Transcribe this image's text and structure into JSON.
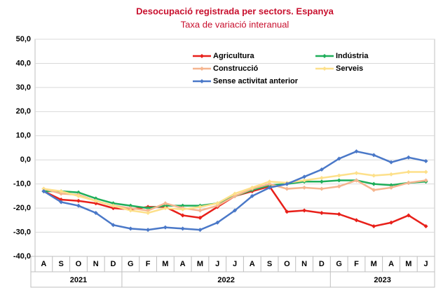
{
  "chart_data": {
    "type": "line",
    "title": "Desocupació registrada per sectors. Espanya",
    "subtitle": "Taxa de variació interanual",
    "categories": [
      "A",
      "S",
      "O",
      "N",
      "D",
      "G",
      "F",
      "M",
      "A",
      "M",
      "J",
      "J",
      "A",
      "S",
      "O",
      "N",
      "D",
      "G",
      "F",
      "M",
      "A",
      "M",
      "J"
    ],
    "years": [
      "2021",
      "2022",
      "2023"
    ],
    "ylim": [
      -40,
      50
    ],
    "yticks": [
      {
        "value": -40,
        "label": "-40,0"
      },
      {
        "value": -30,
        "label": "-30,0"
      },
      {
        "value": -20,
        "label": "-20,0"
      },
      {
        "value": -10,
        "label": "-10,0"
      },
      {
        "value": 0,
        "label": "0,0"
      },
      {
        "value": 10,
        "label": "10,0"
      },
      {
        "value": 20,
        "label": "20,0"
      },
      {
        "value": 30,
        "label": "30,0"
      },
      {
        "value": 40,
        "label": "40,0"
      },
      {
        "value": 50,
        "label": "50,0"
      }
    ],
    "grid": true,
    "series": [
      {
        "name": "Agricultura",
        "color": "#e8201a",
        "values": [
          -13,
          -16.5,
          -17,
          -18,
          -20,
          -20.5,
          -19.5,
          -19.5,
          -23,
          -24,
          -19.5,
          -15,
          -13,
          -11,
          -21.5,
          -21,
          -22,
          -22.5,
          -25,
          -27.5,
          -26,
          -23,
          -27.5
        ]
      },
      {
        "name": "Indústria",
        "color": "#1fae5a",
        "values": [
          -13,
          -13,
          -13.5,
          -16,
          -18,
          -19,
          -20,
          -19,
          -19,
          -19,
          -18,
          -15,
          -12.5,
          -10.5,
          -10,
          -9,
          -9,
          -8.5,
          -8.5,
          -10,
          -10.5,
          -9.5,
          -9
        ]
      },
      {
        "name": "Construcció",
        "color": "#f5b58f",
        "values": [
          -12,
          -14,
          -14.5,
          -17,
          -19,
          -20,
          -21,
          -18,
          -20,
          -21,
          -19,
          -15,
          -12,
          -10,
          -12,
          -11.5,
          -12,
          -11,
          -8.5,
          -12.5,
          -11.5,
          -9.5,
          -8.5
        ]
      },
      {
        "name": "Serveis",
        "color": "#fde08a",
        "values": [
          -12,
          -13,
          -15,
          -17,
          -19,
          -21,
          -22,
          -20,
          -20.5,
          -19.5,
          -18,
          -14,
          -11.5,
          -9,
          -9.5,
          -8.5,
          -7.5,
          -6.5,
          -5.5,
          -6.5,
          -6,
          -5,
          -5
        ]
      },
      {
        "name": "Sense activitat anterior",
        "color": "#4a78c8",
        "values": [
          -13,
          -17.5,
          -19,
          -22,
          -27,
          -28.5,
          -29,
          -28,
          -28.5,
          -29,
          -26,
          -21,
          -15,
          -11.5,
          -10,
          -7,
          -4,
          0.5,
          3.5,
          2,
          -1,
          1,
          -0.5
        ]
      }
    ]
  }
}
